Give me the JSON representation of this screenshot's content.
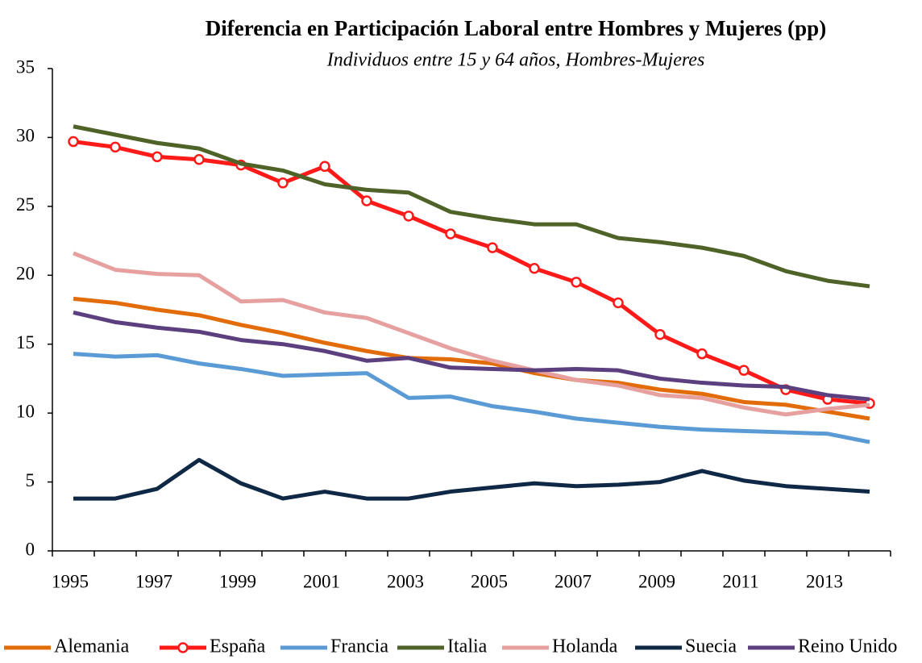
{
  "chart_data": {
    "type": "line",
    "title": "Diferencia en Participación Laboral entre Hombres y Mujeres (pp)",
    "subtitle": "Individuos entre 15 y 64 años, Hombres-Mujeres",
    "categories": [
      "1995",
      null,
      "1997",
      null,
      "1999",
      null,
      "2001",
      null,
      "2003",
      null,
      "2005",
      null,
      "2007",
      null,
      "2009",
      null,
      "2011",
      null,
      "2013",
      null
    ],
    "ylim": [
      0,
      35
    ],
    "yticks": [
      0,
      5,
      10,
      15,
      20,
      25,
      30,
      35
    ],
    "grid": false,
    "legend": "bottom",
    "series": [
      {
        "name": "Alemania",
        "color": "#e36c0a",
        "values": [
          18.3,
          18.0,
          17.5,
          17.1,
          16.4,
          15.8,
          15.1,
          14.5,
          14.0,
          13.9,
          13.6,
          12.9,
          12.4,
          12.2,
          11.7,
          11.4,
          10.8,
          10.6,
          10.1,
          9.6
        ]
      },
      {
        "name": "España",
        "color": "#ff1a1a",
        "marker": "circle",
        "values": [
          29.7,
          29.3,
          28.6,
          28.4,
          28.0,
          26.7,
          27.9,
          25.4,
          24.3,
          23.0,
          22.0,
          20.5,
          19.5,
          18.0,
          15.7,
          14.3,
          13.1,
          11.7,
          11.0,
          10.7
        ]
      },
      {
        "name": "Francia",
        "color": "#5b9bd5",
        "values": [
          14.3,
          14.1,
          14.2,
          13.6,
          13.2,
          12.7,
          12.8,
          12.9,
          11.1,
          11.2,
          10.5,
          10.1,
          9.6,
          9.3,
          9.0,
          8.8,
          8.7,
          8.6,
          8.5,
          7.9
        ]
      },
      {
        "name": "Italia",
        "color": "#4f6228",
        "values": [
          30.8,
          30.2,
          29.6,
          29.2,
          28.1,
          27.6,
          26.6,
          26.2,
          26.0,
          24.6,
          24.1,
          23.7,
          23.7,
          22.7,
          22.4,
          22.0,
          21.4,
          20.3,
          19.6,
          19.2
        ]
      },
      {
        "name": "Holanda",
        "color": "#e6a0a0",
        "values": [
          21.6,
          20.4,
          20.1,
          20.0,
          18.1,
          18.2,
          17.3,
          16.9,
          15.8,
          14.7,
          13.8,
          13.1,
          12.4,
          12.0,
          11.3,
          11.1,
          10.4,
          9.9,
          10.3,
          10.6
        ]
      },
      {
        "name": "Suecia",
        "color": "#0f2846",
        "values": [
          3.8,
          3.8,
          4.5,
          6.6,
          4.9,
          3.8,
          4.3,
          3.8,
          3.8,
          4.3,
          4.6,
          4.9,
          4.7,
          4.8,
          5.0,
          5.8,
          5.1,
          4.7,
          4.5,
          4.3
        ]
      },
      {
        "name": "Reino Unido",
        "color": "#5b3f7f",
        "values": [
          17.3,
          16.6,
          16.2,
          15.9,
          15.3,
          15.0,
          14.5,
          13.8,
          14.0,
          13.3,
          13.2,
          13.1,
          13.2,
          13.1,
          12.5,
          12.2,
          12.0,
          11.9,
          11.3,
          11.0
        ]
      }
    ]
  }
}
